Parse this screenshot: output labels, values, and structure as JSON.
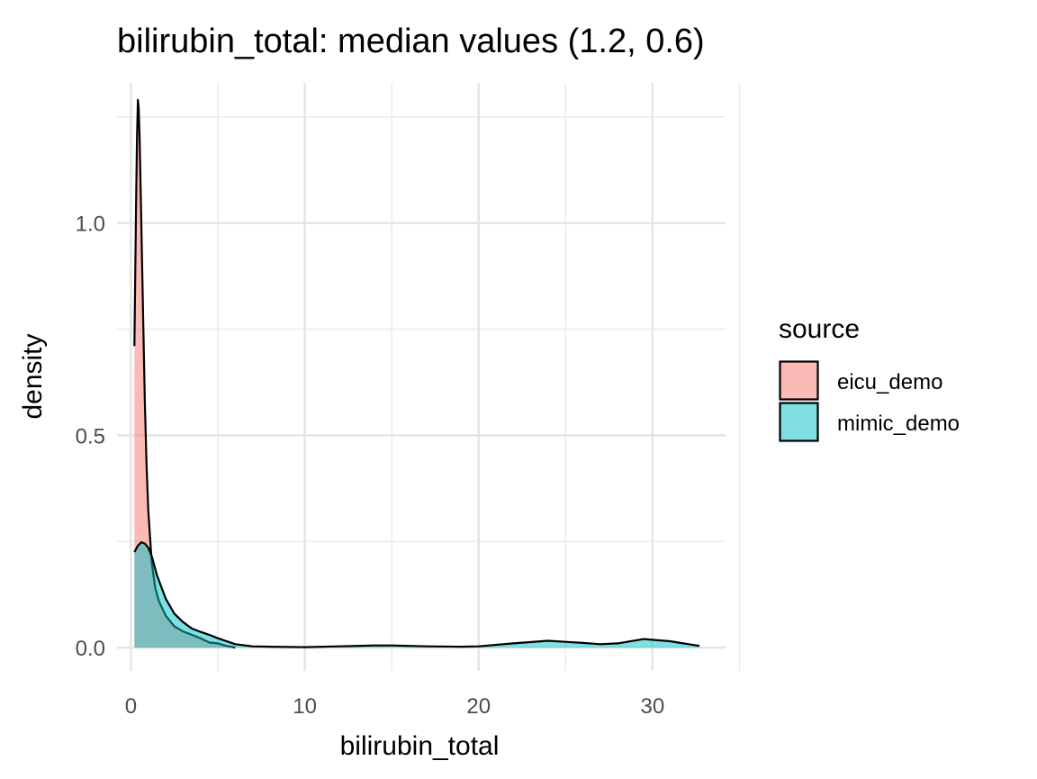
{
  "chart_data": {
    "type": "area",
    "title": "bilirubin_total: median values (1.2, 0.6)",
    "xlabel": "bilirubin_total",
    "ylabel": "density",
    "xlim": [
      -0.8,
      34.2
    ],
    "ylim": [
      -0.055,
      1.33
    ],
    "x_ticks": [
      0,
      10,
      20,
      30
    ],
    "x_tick_labels": [
      "0",
      "10",
      "20",
      "30"
    ],
    "y_ticks": [
      0.0,
      0.5,
      1.0
    ],
    "y_tick_labels": [
      "0.0",
      "0.5",
      "1.0"
    ],
    "grid": true,
    "legend": {
      "title": "source",
      "position": "right"
    },
    "series": [
      {
        "name": "eicu_demo",
        "color": "#F8766D",
        "x": [
          0.2,
          0.3,
          0.35,
          0.4,
          0.45,
          0.5,
          0.6,
          0.7,
          0.8,
          0.9,
          1.0,
          1.2,
          1.4,
          1.6,
          2.0,
          2.5,
          3.0,
          3.5,
          4.0,
          4.5,
          5.0,
          5.5,
          6.0
        ],
        "y": [
          0.71,
          1.05,
          1.2,
          1.29,
          1.27,
          1.2,
          1.0,
          0.78,
          0.58,
          0.43,
          0.32,
          0.2,
          0.14,
          0.11,
          0.075,
          0.05,
          0.038,
          0.03,
          0.022,
          0.012,
          0.01,
          0.004,
          0.0
        ]
      },
      {
        "name": "mimic_demo",
        "color": "#00BFC4",
        "x": [
          0.2,
          0.4,
          0.6,
          0.8,
          1.0,
          1.2,
          1.5,
          2.0,
          2.5,
          3.0,
          3.5,
          4.0,
          4.5,
          5.0,
          6.0,
          7.0,
          8.0,
          10.0,
          12.0,
          14.0,
          15.0,
          17.0,
          19.0,
          20.0,
          22.0,
          24.0,
          26.0,
          27.0,
          28.0,
          29.5,
          31.0,
          32.7
        ],
        "y": [
          0.225,
          0.24,
          0.248,
          0.245,
          0.235,
          0.215,
          0.17,
          0.115,
          0.08,
          0.06,
          0.045,
          0.037,
          0.03,
          0.022,
          0.008,
          0.003,
          0.002,
          0.001,
          0.003,
          0.005,
          0.005,
          0.003,
          0.002,
          0.003,
          0.01,
          0.016,
          0.011,
          0.008,
          0.01,
          0.02,
          0.015,
          0.004
        ]
      }
    ]
  }
}
